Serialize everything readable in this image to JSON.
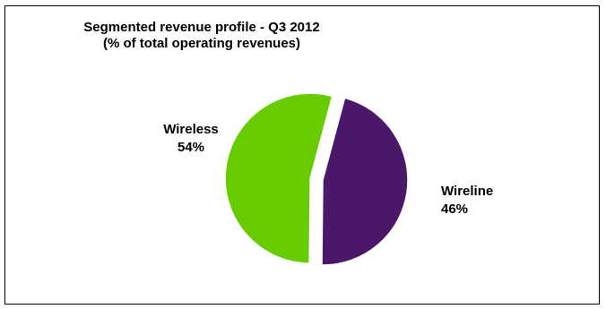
{
  "chart_data": {
    "type": "pie",
    "title": "Segmented revenue profile - Q3 2012",
    "subtitle": "(% of total operating revenues)",
    "slices": [
      {
        "label": "Wireless",
        "value": 54,
        "value_label": "54%",
        "color": "#66cc00",
        "exploded": true
      },
      {
        "label": "Wireline",
        "value": 46,
        "value_label": "46%",
        "color": "#4b1768",
        "exploded": false
      }
    ]
  }
}
